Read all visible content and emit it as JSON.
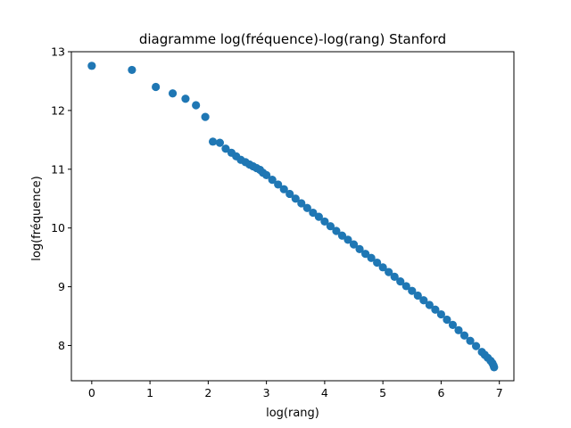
{
  "chart_data": {
    "type": "scatter",
    "title": "diagramme log(fréquence)-log(rang) Stanford",
    "xlabel": "log(rang)",
    "ylabel": "log(fréquence)",
    "xlim": [
      -0.35,
      7.25
    ],
    "ylim": [
      7.4,
      13.0
    ],
    "xticks": [
      0,
      1,
      2,
      3,
      4,
      5,
      6,
      7
    ],
    "yticks": [
      8,
      9,
      10,
      11,
      12,
      13
    ],
    "xtick_labels": [
      "0",
      "1",
      "2",
      "3",
      "4",
      "5",
      "6",
      "7"
    ],
    "ytick_labels": [
      "8",
      "9",
      "10",
      "11",
      "12",
      "13"
    ],
    "grid": false,
    "color": "#1f77b4",
    "series": [
      {
        "x": [
          0,
          0.69,
          1.1,
          1.39,
          1.61,
          1.79,
          1.95,
          2.08,
          2.2,
          2.3,
          2.4,
          2.48,
          2.56,
          2.64,
          2.71,
          2.77,
          2.83,
          2.89,
          2.94,
          3.0,
          3.1,
          3.2,
          3.3,
          3.4,
          3.5,
          3.6,
          3.7,
          3.8,
          3.9,
          4.0,
          4.1,
          4.2,
          4.3,
          4.4,
          4.5,
          4.6,
          4.7,
          4.8,
          4.9,
          5.0,
          5.1,
          5.2,
          5.3,
          5.4,
          5.5,
          5.6,
          5.7,
          5.8,
          5.9,
          6.0,
          6.1,
          6.2,
          6.3,
          6.4,
          6.5,
          6.6,
          6.7,
          6.75,
          6.8,
          6.85,
          6.88,
          6.9,
          6.91
        ],
        "y": [
          12.76,
          12.69,
          12.4,
          12.29,
          12.2,
          12.09,
          11.89,
          11.47,
          11.45,
          11.35,
          11.28,
          11.22,
          11.16,
          11.12,
          11.08,
          11.05,
          11.02,
          10.99,
          10.94,
          10.9,
          10.82,
          10.74,
          10.66,
          10.58,
          10.5,
          10.42,
          10.34,
          10.26,
          10.19,
          10.11,
          10.03,
          9.95,
          9.87,
          9.8,
          9.72,
          9.64,
          9.56,
          9.49,
          9.41,
          9.33,
          9.25,
          9.17,
          9.09,
          9.01,
          8.93,
          8.85,
          8.77,
          8.69,
          8.61,
          8.53,
          8.44,
          8.35,
          8.26,
          8.17,
          8.08,
          7.99,
          7.89,
          7.84,
          7.79,
          7.74,
          7.7,
          7.66,
          7.63
        ]
      }
    ]
  }
}
